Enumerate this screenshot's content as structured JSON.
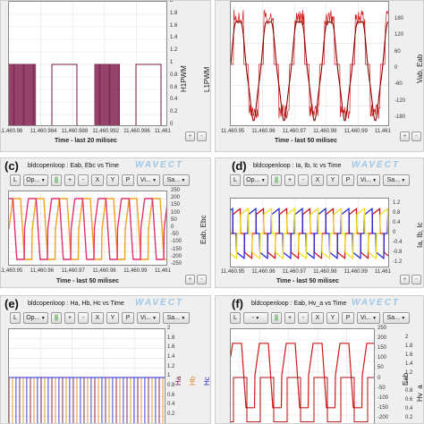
{
  "colors": {
    "maroon": "#7a1446",
    "red": "#d01818",
    "orange": "#f0a020",
    "pink": "#e0306e",
    "blue": "#2a2ad8",
    "yellow": "#f0e020",
    "purple": "#4a2aa0",
    "orangeH": "#e08a20",
    "blueH": "#2a2ad8"
  },
  "panels": {
    "a": {
      "ylabel1": "H1PWM",
      "ylabel2": "L1PWM",
      "yticks": [
        "2",
        "1.8",
        "1.6",
        "1.4",
        "1.2",
        "1",
        "0.8",
        "0.6",
        "0.4",
        "0.2",
        "0"
      ],
      "xticks": [
        "11,460.98",
        "11,460.984",
        "11,460.988",
        "11,460.992",
        "11,460.996",
        "11,461"
      ],
      "xlabel": "Time - last 20 milisec",
      "buttons": [
        "+",
        "-"
      ]
    },
    "b": {
      "ylabel": "Vab, Eab",
      "yticks": [
        "180",
        "120",
        "60",
        "0",
        "-60",
        "-120",
        "-180"
      ],
      "xticks": [
        "11,460.95",
        "11,460.96",
        "11,460.97",
        "11,460.98",
        "11,460.99",
        "11,461"
      ],
      "xlabel": "Time - last 50 milisec",
      "buttons": [
        "+",
        "-"
      ]
    },
    "c": {
      "letter": "(c)",
      "title": "bldcopenloop : Eab, Ebc vs Time",
      "brand": "WAVECT",
      "toolbar": [
        "L",
        "Op...",
        "||",
        "+",
        "-",
        "X",
        "Y",
        "P",
        "Vi...",
        "Sa..."
      ],
      "ylabel": "Eab, Ebc",
      "yticks": [
        "250",
        "200",
        "150",
        "100",
        "50",
        "0",
        "-50",
        "-100",
        "-150",
        "-200",
        "-250"
      ],
      "xticks": [
        "11,460.95",
        "11,460.96",
        "11,460.97",
        "11,460.98",
        "11,460.99",
        "11,461"
      ],
      "xlabel": "Time - last 50 milisec",
      "buttons": [
        "+",
        "-"
      ]
    },
    "d": {
      "letter": "(d)",
      "title": "bldcopenloop : Ia, Ib, Ic vs Time",
      "brand": "WAVECT",
      "toolbar": [
        "L",
        "Op...",
        "||",
        "+",
        "-",
        "X",
        "Y",
        "P",
        "Vi...",
        "Sa..."
      ],
      "ylabel": "Ia, Ib, Ic",
      "yticks": [
        "1.2",
        "0.8",
        "0.4",
        "0",
        "-0.4",
        "-0.8",
        "-1.2"
      ],
      "xticks": [
        "11,460.95",
        "11,460.96",
        "11,460.97",
        "11,460.98",
        "11,460.99",
        "11,461"
      ],
      "xlabel": "Time - last 50 milisec",
      "buttons": [
        "+",
        "-"
      ]
    },
    "e": {
      "letter": "(e)",
      "title": "bldcopenloop : Ha, Hb, Hc vs Time",
      "brand": "WAVECT",
      "toolbar": [
        "L",
        "Op...",
        "||",
        "+",
        "-",
        "X",
        "Y",
        "P",
        "Vi...",
        "Sa..."
      ],
      "ylabels": [
        "Ha",
        "Hb",
        "Hc"
      ],
      "yticks": [
        "2",
        "1.8",
        "1.6",
        "1.4",
        "1.2",
        "1",
        "0.8",
        "0.6",
        "0.4",
        "0.2"
      ]
    },
    "f": {
      "letter": "(f)",
      "title": "bldcopenloop : Eab, Hv_a vs Time",
      "brand": "WAVECT",
      "toolbar": [
        "L",
        "-",
        "||",
        "+",
        "-",
        "X",
        "Y",
        "P",
        "Vi...",
        "Sa..."
      ],
      "ylabel1": "Eab",
      "ylabel2": "Hv_a",
      "yticks1": [
        "250",
        "200",
        "150",
        "100",
        "50",
        "0",
        "-50",
        "-100",
        "-150",
        "-200"
      ],
      "yticks2": [
        "2",
        "1.8",
        "1.6",
        "1.4",
        "1.2",
        "1",
        "0.8",
        "0.6",
        "0.4",
        "0.2"
      ]
    }
  },
  "chart_data": [
    {
      "type": "line",
      "title": "",
      "xlabel": "Time - last 20 milisec",
      "ylabel": "H1PWM, L1PWM",
      "xlim": [
        11460.98,
        11461
      ],
      "ylim": [
        0,
        2
      ],
      "series": [
        {
          "values": [
            0,
            1
          ]
        }
      ]
    },
    {
      "type": "line",
      "title": "",
      "xlabel": "Time - last 50 milisec",
      "ylabel": "Vab, Eab",
      "xlim": [
        11460.95,
        11461
      ],
      "ylim": [
        -180,
        180
      ]
    },
    {
      "type": "line",
      "title": "bldcopenloop : Eab, Ebc vs Time",
      "xlabel": "Time - last 50 milisec",
      "ylabel": "Eab, Ebc",
      "xlim": [
        11460.95,
        11461
      ],
      "ylim": [
        -250,
        250
      ]
    },
    {
      "type": "line",
      "title": "bldcopenloop : Ia, Ib, Ic vs Time",
      "xlabel": "Time - last 50 milisec",
      "ylabel": "Ia, Ib, Ic",
      "xlim": [
        11460.95,
        11461
      ],
      "ylim": [
        -1.2,
        1.2
      ]
    },
    {
      "type": "line",
      "title": "bldcopenloop : Ha, Hb, Hc vs Time",
      "ylabel": "Ha, Hb, Hc",
      "ylim": [
        0,
        2
      ]
    },
    {
      "type": "line",
      "title": "bldcopenloop : Eab, Hv_a vs Time",
      "ylabel": "Eab, Hv_a",
      "ylim": [
        -200,
        250
      ]
    }
  ]
}
